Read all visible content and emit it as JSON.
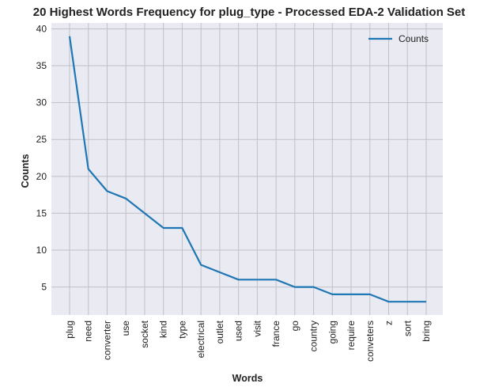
{
  "chart_data": {
    "type": "line",
    "title": "20 Highest Words Frequency for plug_type - Processed EDA-2 Validation Set",
    "xlabel": "Words",
    "ylabel": "Counts",
    "categories": [
      "plug",
      "need",
      "converter",
      "use",
      "socket",
      "kind",
      "type",
      "electrical",
      "outlet",
      "used",
      "visit",
      "france",
      "go",
      "country",
      "going",
      "require",
      "conveters",
      "z",
      "sort",
      "bring"
    ],
    "series": [
      {
        "name": "Counts",
        "values": [
          39,
          21,
          18,
          17,
          15,
          13,
          13,
          8,
          7,
          6,
          6,
          6,
          5,
          5,
          4,
          4,
          4,
          3,
          3,
          3
        ],
        "color": "#1f77b4"
      }
    ],
    "ylim": [
      1.2,
      40.8
    ],
    "yticks": [
      5,
      10,
      15,
      20,
      25,
      30,
      35,
      40
    ],
    "grid": true,
    "legend": "top-right",
    "plot_background": "#eaeaf2",
    "grid_color": "#c0c0c8"
  }
}
